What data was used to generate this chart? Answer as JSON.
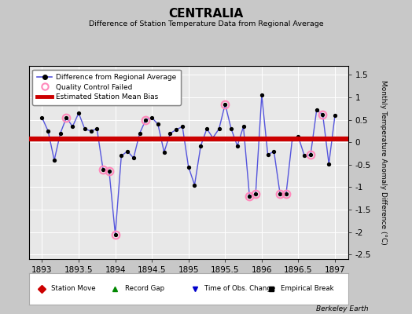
{
  "title": "CENTRALIA",
  "subtitle": "Difference of Station Temperature Data from Regional Average",
  "ylabel": "Monthly Temperature Anomaly Difference (°C)",
  "xlabel_ticks": [
    1893,
    1893.5,
    1894,
    1894.5,
    1895,
    1895.5,
    1896,
    1896.5,
    1897
  ],
  "xlim": [
    1892.82,
    1897.18
  ],
  "ylim": [
    -2.6,
    1.7
  ],
  "yticks": [
    -2.5,
    -2.0,
    -1.5,
    -1.0,
    -0.5,
    0.0,
    0.5,
    1.0,
    1.5
  ],
  "bias_value": 0.07,
  "line_color": "#5555dd",
  "marker_color": "#000000",
  "bias_color": "#cc0000",
  "qc_color": "#ff88bb",
  "plot_bg_color": "#e8e8e8",
  "fig_bg_color": "#c8c8c8",
  "watermark": "Berkeley Earth",
  "data_x": [
    1893.0,
    1893.083,
    1893.167,
    1893.25,
    1893.333,
    1893.417,
    1893.5,
    1893.583,
    1893.667,
    1893.75,
    1893.833,
    1893.917,
    1894.0,
    1894.083,
    1894.167,
    1894.25,
    1894.333,
    1894.417,
    1894.5,
    1894.583,
    1894.667,
    1894.75,
    1894.833,
    1894.917,
    1895.0,
    1895.083,
    1895.167,
    1895.25,
    1895.333,
    1895.417,
    1895.5,
    1895.583,
    1895.667,
    1895.75,
    1895.833,
    1895.917,
    1896.0,
    1896.083,
    1896.167,
    1896.25,
    1896.333,
    1896.417,
    1896.5,
    1896.583,
    1896.667,
    1896.75,
    1896.833,
    1896.917,
    1897.0
  ],
  "data_y": [
    0.55,
    0.25,
    -0.4,
    0.2,
    0.55,
    0.35,
    0.65,
    0.3,
    0.25,
    0.3,
    -0.6,
    -0.65,
    -2.05,
    -0.3,
    -0.2,
    -0.35,
    0.2,
    0.5,
    0.55,
    0.4,
    -0.22,
    0.2,
    0.28,
    0.35,
    -0.55,
    -0.95,
    -0.08,
    0.3,
    0.1,
    0.3,
    0.85,
    0.3,
    -0.08,
    0.35,
    -1.2,
    -1.15,
    1.05,
    -0.28,
    -0.2,
    -1.15,
    -1.15,
    0.08,
    0.12,
    -0.3,
    -0.28,
    0.72,
    0.62,
    -0.48,
    0.6
  ],
  "qc_failed_indices": [
    4,
    10,
    11,
    12,
    17,
    30,
    34,
    35,
    39,
    40,
    44,
    46
  ],
  "legend1_label": "Difference from Regional Average",
  "legend2_label": "Quality Control Failed",
  "legend3_label": "Estimated Station Mean Bias",
  "bottom_legend_items": [
    {
      "marker": "D",
      "color": "#cc0000",
      "label": "Station Move"
    },
    {
      "marker": "^",
      "color": "#008800",
      "label": "Record Gap"
    },
    {
      "marker": "v",
      "color": "#0000cc",
      "label": "Time of Obs. Change"
    },
    {
      "marker": "s",
      "color": "#000000",
      "label": "Empirical Break"
    }
  ]
}
